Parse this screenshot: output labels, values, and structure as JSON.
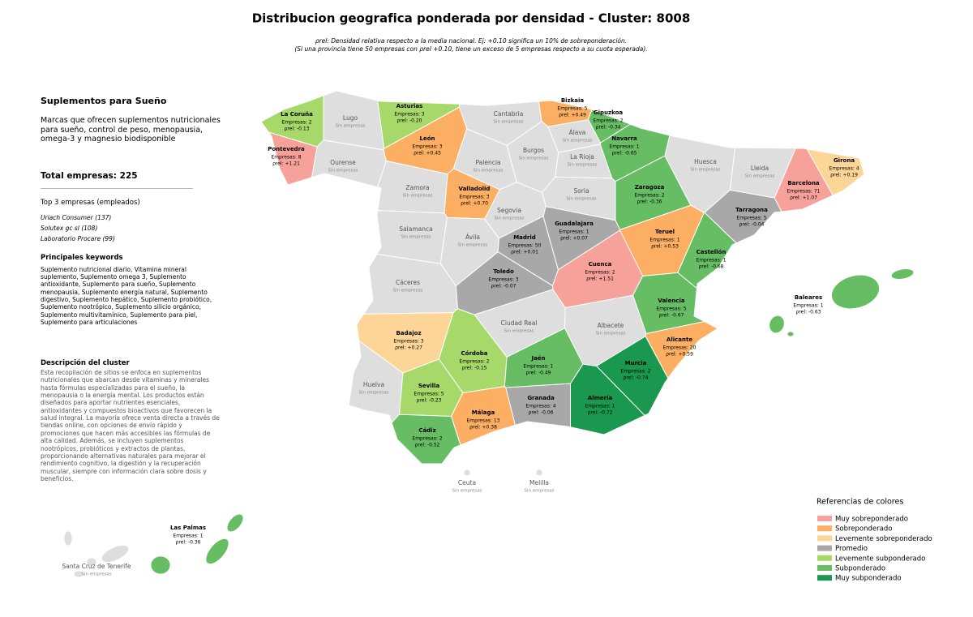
{
  "header": {
    "title": "Distribucion geografica ponderada por densidad - Cluster: 8008",
    "subtitle_lines": [
      "ρrel: Densidad relativa respecto a la media nacional. Ej: +0.10 significa un 10% de sobreponderación.",
      "(Si una provincia tiene 50 empresas con ρrel +0.10, tiene un exceso de 5 empresas respecto a su cuota esperada)."
    ]
  },
  "sidebar": {
    "cluster_name": "Suplementos para Sueño",
    "cluster_summary": "Marcas que ofrecen suplementos nutricionales para sueño, control de peso, menopausia, omega-3 y magnesio biodisponible",
    "total": "Total empresas: 225",
    "top_title": "Top 3 empresas (empleados)",
    "top": [
      "Uriach Consumer (137)",
      "Solutex gc sl (108)",
      "Laboratorio Procare (99)"
    ],
    "keywords_title": "Principales keywords",
    "keywords": "Suplemento nutricional diario, Vitamina mineral suplemento, Suplemento omega 3, Suplemento antioxidante, Suplemento para sueño, Suplemento menopausia, Suplemento energía natural, Suplemento digestivo, Suplemento hepático, Suplemento probiótico, Suplemento nootrópico, Suplemento silicio orgánico, Suplemento multivitamínico, Suplemento para piel, Suplemento para articulaciones",
    "description_title": "Descripción del cluster",
    "description": "Esta recopilación de sitios se enfoca en suplementos nutricionales que abarcan desde vitaminas y minerales hasta fórmulas especializadas para el sueño, la menopausia o la energía mental. Los productos están diseñados para aportar nutrientes esenciales, antioxidantes y compuestos bioactivos que favorecen la salud integral. La mayoría ofrece venta directa a través de tiendas online, con opciones de envío rápido y promociones que hacen más accesibles las fórmulas de alta calidad. Además, se incluyen suplementos nootrópicos, probióticos y extractos de plantas, proporcionando alternativas naturales para mejorar el rendimiento cognitivo, la digestión y la recuperación muscular, siempre con información clara sobre dosis y beneficios."
  },
  "no_data_color": "#dedede",
  "provinces": [
    {
      "name": "La Coruña",
      "companies": "Empresas: 2",
      "density": "ρrel: -0.13",
      "level": 4
    },
    {
      "name": "Lugo",
      "companies": "Sin empresas"
    },
    {
      "name": "Pontevedra",
      "companies": "Empresas: 8",
      "density": "ρrel: +1.21",
      "level": 0
    },
    {
      "name": "Ourense",
      "companies": "Sin empresas"
    },
    {
      "name": "Asturias",
      "companies": "Empresas: 3",
      "density": "ρrel: -0.20",
      "level": 4
    },
    {
      "name": "Cantabria",
      "companies": "Sin empresas"
    },
    {
      "name": "Bizkaia",
      "companies": "Empresas: 5",
      "density": "ρrel: +0.49",
      "level": 1
    },
    {
      "name": "Gipuzkoa",
      "companies": "Empresas: 2",
      "density": "ρrel: -0.34",
      "level": 5
    },
    {
      "name": "Álava",
      "companies": "Sin empresas"
    },
    {
      "name": "Navarra",
      "companies": "Empresas: 1",
      "density": "ρrel: -0.65",
      "level": 5
    },
    {
      "name": "León",
      "companies": "Empresas: 3",
      "density": "ρrel: +0.45",
      "level": 1
    },
    {
      "name": "Palencia",
      "companies": "Sin empresas"
    },
    {
      "name": "Burgos",
      "companies": "Sin empresas"
    },
    {
      "name": "La Rioja",
      "companies": "Sin empresas"
    },
    {
      "name": "Zamora",
      "companies": "Sin empresas"
    },
    {
      "name": "Valladolid",
      "companies": "Empresas: 3",
      "density": "ρrel: +0.70",
      "level": 1
    },
    {
      "name": "Soria",
      "companies": "Sin empresas"
    },
    {
      "name": "Huesca",
      "companies": "Sin empresas"
    },
    {
      "name": "Lleida",
      "companies": "Sin empresas"
    },
    {
      "name": "Girona",
      "companies": "Empresas: 4",
      "density": "ρrel: +0.19",
      "level": 2
    },
    {
      "name": "Barcelona",
      "companies": "Empresas: 71",
      "density": "ρrel: +1.07",
      "level": 0
    },
    {
      "name": "Zaragoza",
      "companies": "Empresas: 2",
      "density": "ρrel: -0.36",
      "level": 5
    },
    {
      "name": "Tarragona",
      "companies": "Empresas: 5",
      "density": "ρrel: -0.04",
      "level": 3
    },
    {
      "name": "Salamanca",
      "companies": "Sin empresas"
    },
    {
      "name": "Ávila",
      "companies": "Sin empresas"
    },
    {
      "name": "Segovia",
      "companies": "Sin empresas"
    },
    {
      "name": "Madrid",
      "companies": "Empresas: 50",
      "density": "ρrel: +0.01",
      "level": 3
    },
    {
      "name": "Guadalajara",
      "companies": "Empresas: 1",
      "density": "ρrel: +0.07",
      "level": 3
    },
    {
      "name": "Teruel",
      "companies": "Empresas: 1",
      "density": "ρrel: +0.53",
      "level": 1
    },
    {
      "name": "Castellón",
      "companies": "Empresas: 1",
      "density": "ρrel: -0.68",
      "level": 5
    },
    {
      "name": "Cuenca",
      "companies": "Empresas: 2",
      "density": "ρrel: +1.51",
      "level": 0
    },
    {
      "name": "Cáceres",
      "companies": "Sin empresas"
    },
    {
      "name": "Toledo",
      "companies": "Empresas: 3",
      "density": "ρrel: -0.07",
      "level": 3
    },
    {
      "name": "Valencia",
      "companies": "Empresas: 5",
      "density": "ρrel: -0.67",
      "level": 5
    },
    {
      "name": "Badajoz",
      "companies": "Empresas: 3",
      "density": "ρrel: +0.27",
      "level": 2
    },
    {
      "name": "Ciudad Real",
      "companies": "Sin empresas"
    },
    {
      "name": "Albacete",
      "companies": "Sin empresas"
    },
    {
      "name": "Alicante",
      "companies": "Empresas: 20",
      "density": "ρrel: +0.59",
      "level": 1
    },
    {
      "name": "Córdoba",
      "companies": "Empresas: 2",
      "density": "ρrel: -0.15",
      "level": 4
    },
    {
      "name": "Jaén",
      "companies": "Empresas: 1",
      "density": "ρrel: -0.49",
      "level": 5
    },
    {
      "name": "Murcia",
      "companies": "Empresas: 2",
      "density": "ρrel: -0.74",
      "level": 6
    },
    {
      "name": "Huelva",
      "companies": "Sin empresas"
    },
    {
      "name": "Sevilla",
      "companies": "Empresas: 5",
      "density": "ρrel: -0.23",
      "level": 4
    },
    {
      "name": "Granada",
      "companies": "Empresas: 4",
      "density": "ρrel: -0.06",
      "level": 3
    },
    {
      "name": "Almería",
      "companies": "Empresas: 1",
      "density": "ρrel: -0.72",
      "level": 6
    },
    {
      "name": "Málaga",
      "companies": "Empresas: 13",
      "density": "ρrel: +0.38",
      "level": 1
    },
    {
      "name": "Cádiz",
      "companies": "Empresas: 2",
      "density": "ρrel: -0.52",
      "level": 5
    },
    {
      "name": "Baleares",
      "companies": "Empresas: 1",
      "density": "ρrel: -0.63",
      "level": 5
    },
    {
      "name": "Ceuta",
      "companies": "Sin empresas"
    },
    {
      "name": "Melilla",
      "companies": "Sin empresas"
    },
    {
      "name": "Las Palmas",
      "companies": "Empresas: 1",
      "density": "ρrel: -0.36",
      "level": 5
    },
    {
      "name": "Santa Cruz de Tenerife",
      "companies": "Sin empresas"
    }
  ],
  "legend": {
    "title": "Referencias de colores",
    "items": [
      {
        "label": "Muy sobreponderado",
        "color": "#f7a19b"
      },
      {
        "label": "Sobreponderado",
        "color": "#fcae63"
      },
      {
        "label": "Levemente sobreponderado",
        "color": "#fdd597"
      },
      {
        "label": "Promedio",
        "color": "#a8a8a8"
      },
      {
        "label": "Levemente subponderado",
        "color": "#a6d96a"
      },
      {
        "label": "Subponderado",
        "color": "#66bd63"
      },
      {
        "label": "Muy subponderado",
        "color": "#1a9850"
      }
    ]
  }
}
